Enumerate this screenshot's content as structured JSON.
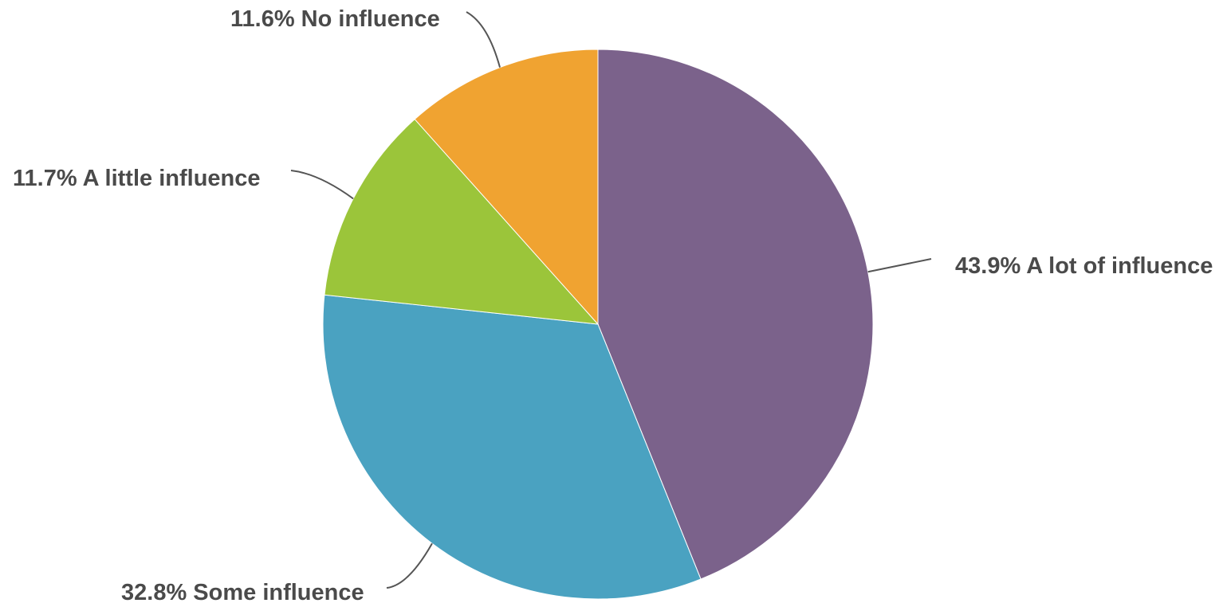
{
  "chart_data": {
    "type": "pie",
    "title": "",
    "slices": [
      {
        "label": "A lot of influence",
        "value": 43.9,
        "value_text": "43.9%",
        "color": "#7b628b"
      },
      {
        "label": "Some influence",
        "value": 32.8,
        "value_text": "32.8%",
        "color": "#4aa2c1"
      },
      {
        "label": "A little influence",
        "value": 11.7,
        "value_text": "11.7%",
        "color": "#9bc53a"
      },
      {
        "label": "No influence",
        "value": 11.6,
        "value_text": "11.6%",
        "color": "#f0a331"
      }
    ],
    "start_angle": "12 o'clock",
    "direction": "clockwise",
    "legend": "none",
    "data_labels": "outside with leader lines"
  }
}
